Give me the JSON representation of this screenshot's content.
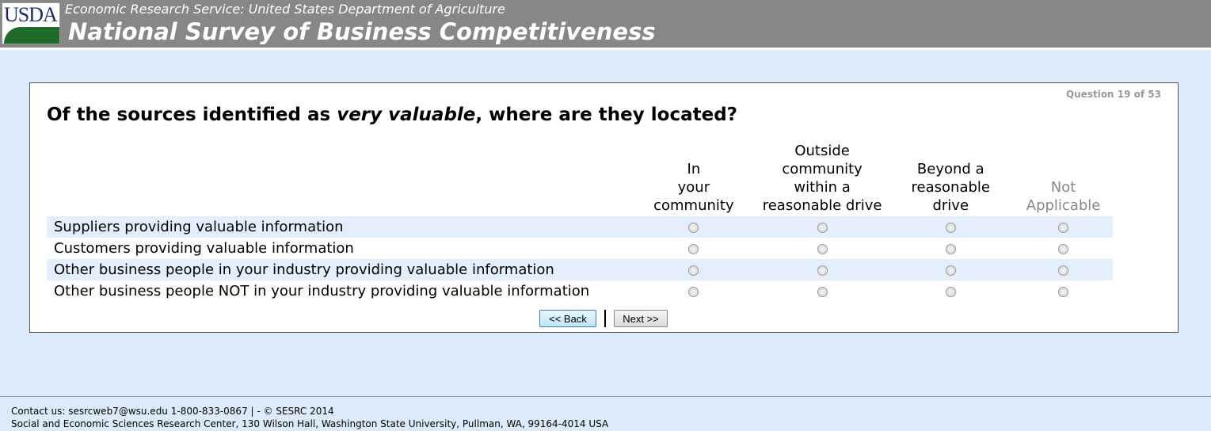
{
  "header": {
    "logo_text": "USDA",
    "subtitle": "Economic Research Service: United States Department of Agriculture",
    "title": "National Survey of Business Competitiveness"
  },
  "question": {
    "counter": "Question 19 of 53",
    "text_before": "Of the sources identified as ",
    "text_emphasis": "very valuable",
    "text_after": ", where are they located?"
  },
  "columns": [
    {
      "lines": [
        "In",
        "your",
        "community"
      ]
    },
    {
      "lines": [
        "Outside community",
        "within a",
        "reasonable drive"
      ]
    },
    {
      "lines": [
        "Beyond a",
        "reasonable",
        "drive"
      ]
    },
    {
      "lines": [
        "Not",
        "Applicable"
      ]
    }
  ],
  "rows": [
    {
      "label": "Suppliers providing valuable information"
    },
    {
      "label": "Customers providing valuable information"
    },
    {
      "label": "Other business people in your industry providing valuable information"
    },
    {
      "label": "Other business people NOT in your industry providing valuable information"
    }
  ],
  "nav": {
    "back": "<< Back",
    "next": "Next >>"
  },
  "footer": {
    "line1": "Contact us: sesrcweb7@wsu.edu 1-800-833-0867 | - © SESRC 2014",
    "line2": "Social and Economic Sciences Research Center, 130 Wilson Hall, Washington State University, Pullman, WA, 99164-4014 USA"
  }
}
